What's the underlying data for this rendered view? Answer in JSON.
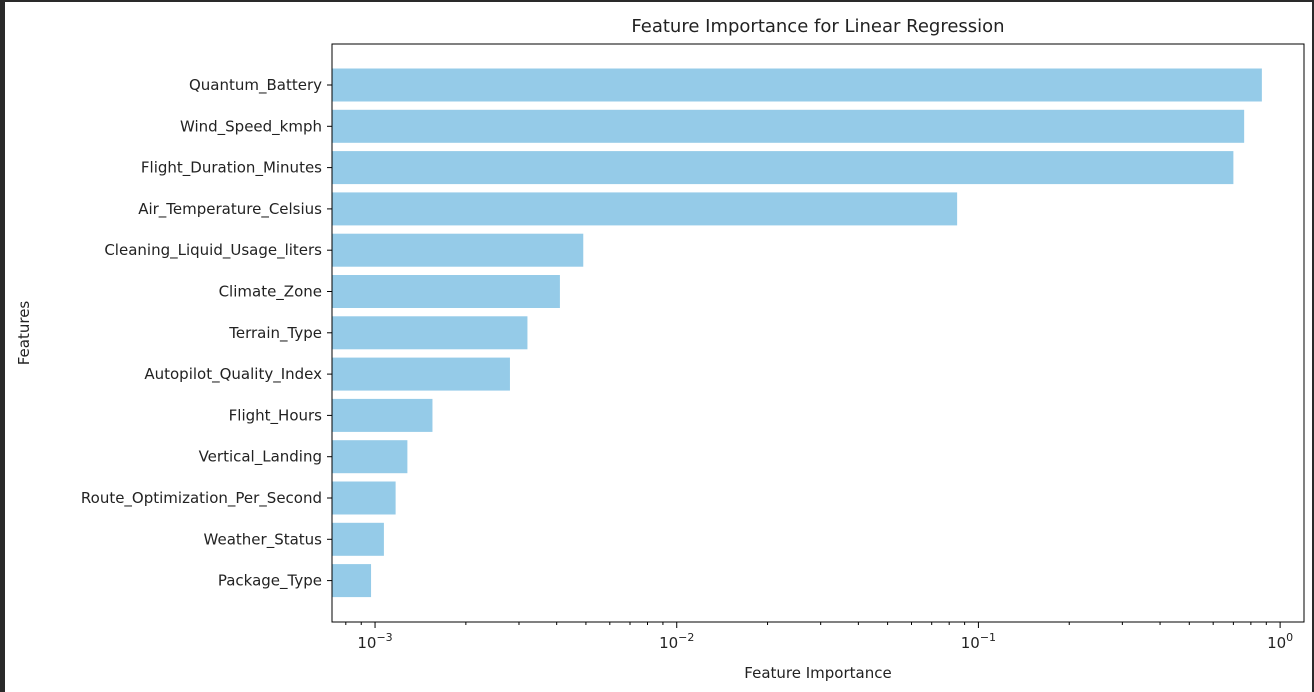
{
  "chart_data": {
    "type": "bar",
    "orientation": "horizontal",
    "title": "Feature Importance for Linear Regression",
    "xlabel": "Feature Importance",
    "ylabel": "Features",
    "x_scale": "log",
    "xlim": [
      0.00072,
      1.2
    ],
    "x_ticks": [
      {
        "value": 0.001,
        "base": "10",
        "exp": "−3"
      },
      {
        "value": 0.01,
        "base": "10",
        "exp": "−2"
      },
      {
        "value": 0.1,
        "base": "10",
        "exp": "−1"
      },
      {
        "value": 1,
        "base": "10",
        "exp": "0"
      }
    ],
    "categories": [
      "Quantum_Battery",
      "Wind_Speed_kmph",
      "Flight_Duration_Minutes",
      "Air_Temperature_Celsius",
      "Cleaning_Liquid_Usage_liters",
      "Climate_Zone",
      "Terrain_Type",
      "Autopilot_Quality_Index",
      "Flight_Hours",
      "Vertical_Landing",
      "Route_Optimization_Per_Second",
      "Weather_Status",
      "Package_Type"
    ],
    "values": [
      0.87,
      0.76,
      0.7,
      0.085,
      0.0049,
      0.0041,
      0.0032,
      0.0028,
      0.00155,
      0.00128,
      0.00117,
      0.00107,
      0.00097
    ],
    "bar_color": "#95cbe8",
    "grid": false,
    "legend": "none"
  }
}
